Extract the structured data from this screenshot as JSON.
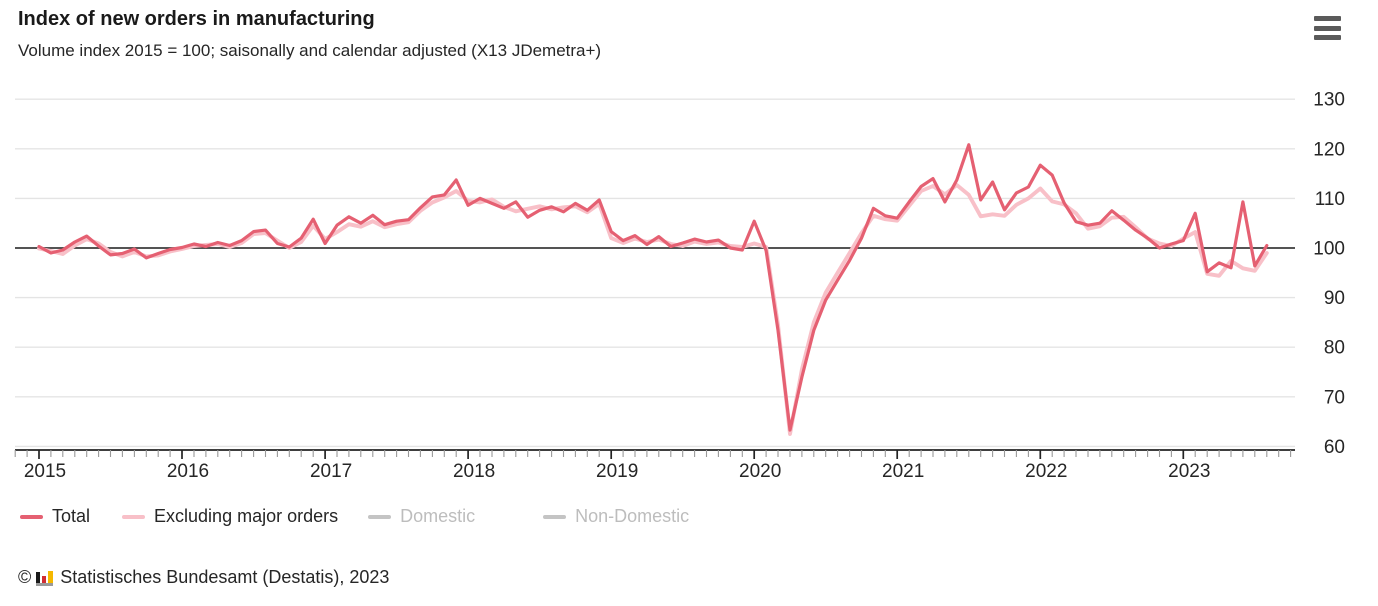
{
  "header": {
    "title": "Index of new orders in manufacturing",
    "subtitle": "Volume index 2015 = 100; saisonally and calendar adjusted (X13 JDemetra+)",
    "menu_icon": "hamburger"
  },
  "chart_data": {
    "type": "line",
    "title": "Index of new orders in manufacturing",
    "subtitle": "Volume index 2015 = 100; saisonally and calendar adjusted (X13 JDemetra+)",
    "xlabel": "",
    "ylabel": "",
    "ylim": [
      60,
      130
    ],
    "grid": true,
    "baseline": 100,
    "legend_position": "bottom",
    "yticks": [
      "130",
      "120",
      "110",
      "100",
      "90",
      "80",
      "70",
      "60"
    ],
    "ytick_values": [
      130,
      120,
      110,
      100,
      90,
      80,
      70,
      60
    ],
    "xticks": [
      "2015",
      "2016",
      "2017",
      "2018",
      "2019",
      "2020",
      "2021",
      "2022",
      "2023"
    ],
    "x": [
      "2015-01",
      "2015-02",
      "2015-03",
      "2015-04",
      "2015-05",
      "2015-06",
      "2015-07",
      "2015-08",
      "2015-09",
      "2015-10",
      "2015-11",
      "2015-12",
      "2016-01",
      "2016-02",
      "2016-03",
      "2016-04",
      "2016-05",
      "2016-06",
      "2016-07",
      "2016-08",
      "2016-09",
      "2016-10",
      "2016-11",
      "2016-12",
      "2017-01",
      "2017-02",
      "2017-03",
      "2017-04",
      "2017-05",
      "2017-06",
      "2017-07",
      "2017-08",
      "2017-09",
      "2017-10",
      "2017-11",
      "2017-12",
      "2018-01",
      "2018-02",
      "2018-03",
      "2018-04",
      "2018-05",
      "2018-06",
      "2018-07",
      "2018-08",
      "2018-09",
      "2018-10",
      "2018-11",
      "2018-12",
      "2019-01",
      "2019-02",
      "2019-03",
      "2019-04",
      "2019-05",
      "2019-06",
      "2019-07",
      "2019-08",
      "2019-09",
      "2019-10",
      "2019-11",
      "2019-12",
      "2020-01",
      "2020-02",
      "2020-03",
      "2020-04",
      "2020-05",
      "2020-06",
      "2020-07",
      "2020-08",
      "2020-09",
      "2020-10",
      "2020-11",
      "2020-12",
      "2021-01",
      "2021-02",
      "2021-03",
      "2021-04",
      "2021-05",
      "2021-06",
      "2021-07",
      "2021-08",
      "2021-09",
      "2021-10",
      "2021-11",
      "2021-12",
      "2022-01",
      "2022-02",
      "2022-03",
      "2022-04",
      "2022-05",
      "2022-06",
      "2022-07",
      "2022-08",
      "2022-09",
      "2022-10",
      "2022-11",
      "2022-12",
      "2023-01",
      "2023-02",
      "2023-03",
      "2023-04",
      "2023-05",
      "2023-06",
      "2023-07",
      "2023-08"
    ],
    "series": [
      {
        "name": "Total",
        "color": "#e56072",
        "visible": true,
        "values": [
          100.3,
          99.0,
          99.6,
          101.2,
          102.4,
          100.4,
          98.6,
          98.9,
          99.8,
          98.0,
          98.9,
          99.7,
          100.1,
          100.8,
          100.3,
          101.1,
          100.5,
          101.5,
          103.3,
          103.6,
          100.9,
          100.2,
          102.0,
          105.8,
          100.9,
          104.6,
          106.3,
          105.0,
          106.6,
          104.7,
          105.4,
          105.7,
          108.1,
          110.3,
          110.7,
          113.7,
          108.6,
          110.0,
          109.0,
          108.0,
          109.3,
          106.2,
          107.6,
          108.3,
          107.3,
          109.0,
          107.6,
          109.7,
          103.3,
          101.5,
          102.5,
          100.7,
          102.3,
          100.3,
          101.0,
          101.8,
          101.2,
          101.6,
          100.0,
          99.6,
          105.4,
          99.5,
          83.4,
          63.3,
          74.0,
          83.4,
          89.5,
          93.5,
          97.5,
          102.0,
          108.0,
          106.5,
          106.0,
          109.3,
          112.4,
          114.0,
          109.3,
          113.7,
          120.8,
          109.7,
          113.3,
          107.7,
          111.1,
          112.3,
          116.7,
          114.7,
          109.1,
          105.3,
          104.6,
          105.0,
          107.5,
          105.6,
          103.6,
          102.0,
          100.0,
          100.8,
          101.5,
          107.0,
          95.2,
          97.0,
          96.0,
          109.3,
          96.4,
          100.5
        ]
      },
      {
        "name": "Excluding major orders",
        "color": "#f8c0c8",
        "visible": true,
        "values": [
          99.9,
          99.4,
          98.8,
          100.5,
          101.8,
          100.9,
          99.2,
          98.3,
          99.2,
          98.3,
          98.5,
          99.3,
          99.8,
          100.4,
          100.6,
          100.8,
          100.2,
          101.0,
          102.8,
          103.0,
          101.5,
          100.0,
          101.2,
          104.5,
          101.8,
          103.2,
          104.8,
          104.3,
          105.4,
          104.2,
          104.8,
          105.2,
          107.5,
          109.2,
          110.2,
          111.5,
          109.5,
          109.2,
          109.8,
          108.3,
          107.4,
          107.9,
          108.4,
          107.8,
          108.2,
          108.4,
          107.2,
          108.9,
          102.0,
          101.0,
          101.9,
          101.2,
          101.7,
          100.8,
          100.4,
          101.3,
          100.8,
          101.1,
          100.4,
          100.2,
          100.9,
          100.2,
          84.5,
          62.5,
          75.5,
          85.0,
          91.0,
          95.0,
          99.0,
          103.0,
          106.5,
          105.8,
          105.5,
          108.5,
          111.5,
          112.5,
          110.8,
          112.7,
          110.7,
          106.4,
          106.8,
          106.5,
          108.7,
          110.0,
          112.0,
          109.4,
          108.8,
          107.0,
          103.9,
          104.4,
          106.1,
          106.3,
          104.2,
          101.9,
          100.9,
          100.4,
          101.9,
          103.2,
          94.8,
          94.4,
          97.4,
          95.9,
          95.4,
          99.0
        ]
      },
      {
        "name": "Domestic",
        "color": "#c4c4c4",
        "visible": false,
        "values": []
      },
      {
        "name": "Non-Domestic",
        "color": "#c4c4c4",
        "visible": false,
        "values": []
      }
    ]
  },
  "legend": {
    "items": [
      {
        "label": "Total",
        "color": "#e56072",
        "active": true
      },
      {
        "label": "Excluding major orders",
        "color": "#f8c0c8",
        "active": true
      },
      {
        "label": "Domestic",
        "color": "#c4c4c4",
        "active": false
      },
      {
        "label": "Non-Domestic",
        "color": "#c4c4c4",
        "active": false
      }
    ]
  },
  "footer": {
    "copyright_symbol": "©",
    "logo_icon": "destatis-bar-chart-logo",
    "source": "Statistisches Bundesamt (Destatis), 2023"
  },
  "colors": {
    "total_line": "#e56072",
    "excluding_line": "#f8c0c8",
    "gridline": "#e4e4e4",
    "baseline_100": "#3b3b3b",
    "axis": "#222222",
    "minor_tick": "#999999",
    "disabled_legend_text": "#bdbdbd",
    "text": "#262626"
  }
}
